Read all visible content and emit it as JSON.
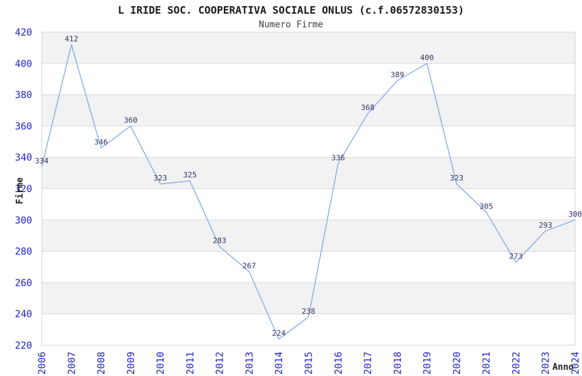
{
  "chart_data": {
    "type": "line",
    "title": "L IRIDE SOC. COOPERATIVA SOCIALE ONLUS (c.f.06572830153)",
    "subtitle": "Numero Firme",
    "xlabel": "Anno",
    "ylabel": "Firme",
    "categories": [
      "2006",
      "2007",
      "2008",
      "2009",
      "2010",
      "2011",
      "2012",
      "2013",
      "2014",
      "2015",
      "2016",
      "2017",
      "2018",
      "2019",
      "2020",
      "2021",
      "2022",
      "2023",
      "2024"
    ],
    "values": [
      334,
      412,
      346,
      360,
      323,
      325,
      283,
      267,
      224,
      238,
      336,
      368,
      389,
      400,
      323,
      305,
      273,
      293,
      300
    ],
    "ylim": [
      220,
      420
    ],
    "ytick_step": 20,
    "yticks": [
      220,
      240,
      260,
      280,
      300,
      320,
      340,
      360,
      380,
      400,
      420
    ],
    "grid": "horizontal-bands",
    "legend": "none",
    "data_labels": "shown",
    "colors": {
      "line": "#7fabe8",
      "band": "#f2f2f2",
      "band_alt": "#ffffff",
      "gridline": "#d9d9d9",
      "plot_border": "#d3d3d3",
      "axis_tick_label": "#2222cc",
      "data_label": "#333366",
      "title": "#1a1a1a",
      "subtitle": "#3c3c3c",
      "axis_label": "#222222"
    }
  }
}
